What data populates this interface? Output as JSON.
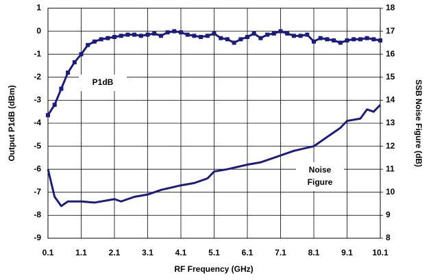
{
  "chart_data": {
    "type": "line",
    "xlabel": "RF Frequency (GHz)",
    "ylabel": "Output P1dB (dBm)",
    "y2label": "SSB Noise Figure (dB)",
    "xlim": [
      0.1,
      10.1
    ],
    "xticks": [
      0.1,
      1.1,
      2.1,
      3.1,
      4.1,
      5.1,
      6.1,
      7.1,
      8.1,
      9.1,
      10.1
    ],
    "ylim": [
      -9,
      1
    ],
    "yticks": [
      1,
      0,
      -1,
      -2,
      -3,
      -4,
      -5,
      -6,
      -7,
      -8,
      -9
    ],
    "y2lim": [
      8,
      18
    ],
    "y2ticks": [
      18,
      17,
      16,
      15,
      14,
      13,
      12,
      11,
      10,
      9,
      8
    ],
    "grid": true,
    "annotations": [
      {
        "lines": [
          "P1dB"
        ]
      },
      {
        "lines": [
          "Noise",
          "Figure"
        ]
      }
    ],
    "series": [
      {
        "name": "P1dB",
        "color": "#1c1c7e",
        "markers": true,
        "x": [
          0.1,
          0.3,
          0.5,
          0.7,
          0.9,
          1.1,
          1.3,
          1.5,
          1.7,
          1.9,
          2.1,
          2.3,
          2.5,
          2.7,
          2.9,
          3.1,
          3.3,
          3.5,
          3.7,
          3.9,
          4.1,
          4.3,
          4.5,
          4.7,
          4.9,
          5.1,
          5.3,
          5.5,
          5.7,
          5.9,
          6.1,
          6.3,
          6.5,
          6.7,
          6.9,
          7.1,
          7.3,
          7.5,
          7.7,
          7.9,
          8.1,
          8.3,
          8.5,
          8.7,
          8.9,
          9.1,
          9.3,
          9.5,
          9.7,
          9.9,
          10.1
        ],
        "values": [
          -3.65,
          -3.2,
          -2.5,
          -1.8,
          -1.35,
          -1.0,
          -0.6,
          -0.45,
          -0.35,
          -0.3,
          -0.25,
          -0.2,
          -0.15,
          -0.15,
          -0.2,
          -0.15,
          -0.1,
          -0.2,
          -0.05,
          0,
          -0.05,
          -0.15,
          -0.2,
          -0.25,
          -0.2,
          -0.1,
          -0.3,
          -0.35,
          -0.5,
          -0.35,
          -0.25,
          -0.1,
          -0.3,
          -0.15,
          -0.1,
          0,
          -0.1,
          -0.2,
          -0.2,
          -0.15,
          -0.45,
          -0.3,
          -0.35,
          -0.4,
          -0.5,
          -0.4,
          -0.35,
          -0.35,
          -0.3,
          -0.35,
          -0.4
        ]
      },
      {
        "name": "Noise Figure",
        "color": "#1c1c7e",
        "axis": "y2",
        "markers": false,
        "x": [
          0.1,
          0.3,
          0.5,
          0.7,
          1.1,
          1.5,
          2.1,
          2.3,
          2.7,
          3.1,
          3.5,
          4.1,
          4.5,
          4.9,
          5.1,
          5.5,
          6.1,
          6.5,
          7.1,
          7.5,
          8.1,
          8.5,
          8.9,
          9.1,
          9.5,
          9.7,
          9.9,
          10.1
        ],
        "values": [
          11.0,
          9.8,
          9.4,
          9.6,
          9.6,
          9.55,
          9.7,
          9.6,
          9.8,
          9.9,
          10.1,
          10.3,
          10.4,
          10.6,
          10.9,
          11.0,
          11.2,
          11.3,
          11.6,
          11.8,
          12.0,
          12.4,
          12.8,
          13.1,
          13.2,
          13.6,
          13.5,
          13.8
        ]
      }
    ]
  }
}
